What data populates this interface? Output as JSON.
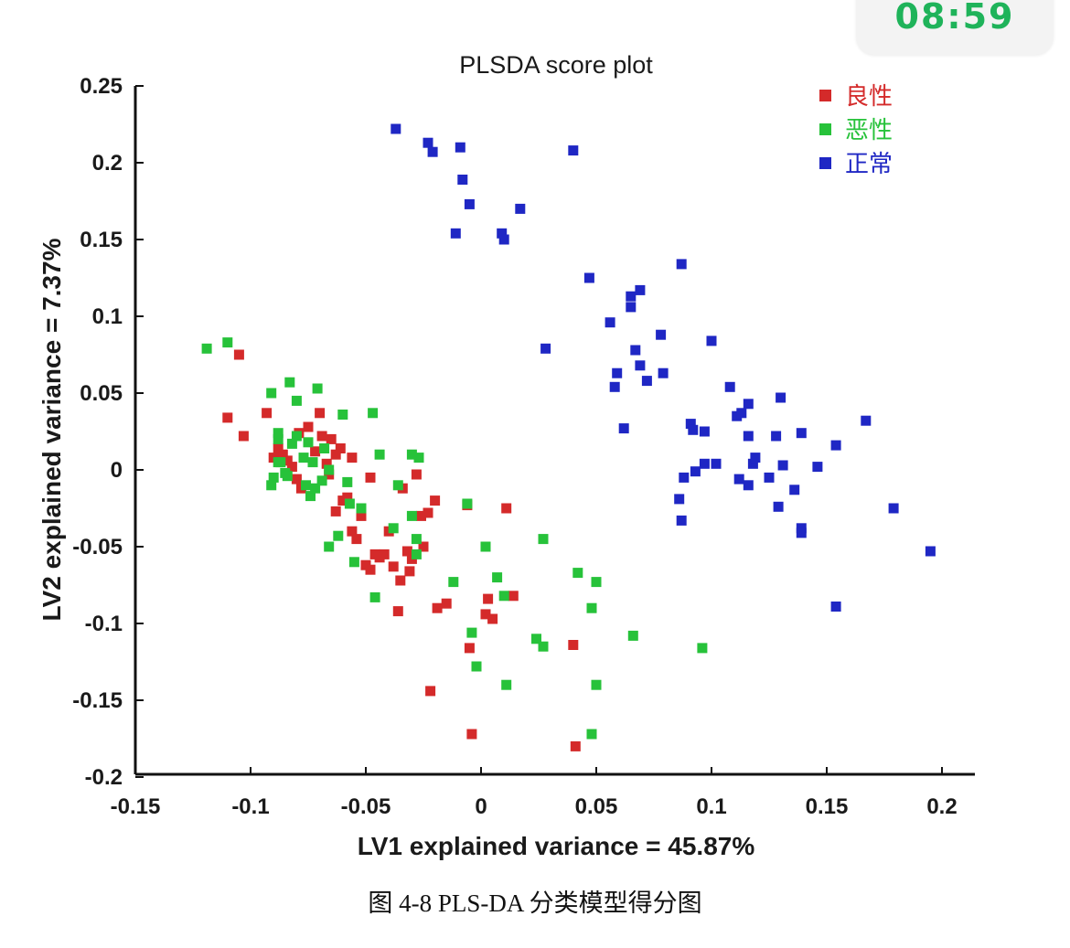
{
  "status_bar": {
    "time": "08:59",
    "time_color": "#1fb35a"
  },
  "caption": "图 4-8 PLS-DA 分类模型得分图",
  "chart_data": {
    "type": "scatter",
    "title": "PLSDA score plot",
    "xlabel": "LV1 explained variance = 45.87%",
    "ylabel": "LV2 explained variance = 7.37%",
    "xlim": [
      -0.15,
      0.22
    ],
    "ylim": [
      -0.2,
      0.25
    ],
    "xticks": [
      -0.15,
      -0.1,
      -0.05,
      0,
      0.05,
      0.1,
      0.15,
      0.2
    ],
    "xtick_labels": [
      "-0.15",
      "-0.1",
      "-0.05",
      "0",
      "0.05",
      "0.1",
      "0.15",
      "0.2"
    ],
    "yticks": [
      0.25,
      0.2,
      0.15,
      0.1,
      0.05,
      0,
      -0.05,
      -0.1,
      -0.15,
      -0.2
    ],
    "ytick_labels": [
      "0.25",
      "0.2",
      "0.15",
      "0.1",
      "0.05",
      "0",
      "-0.05",
      "-0.1",
      "-0.15",
      "-0.2"
    ],
    "legend_position": "top-right",
    "series": [
      {
        "name": "良性",
        "color": "#d42a2a",
        "points": [
          [
            -0.105,
            0.075
          ],
          [
            -0.11,
            0.034
          ],
          [
            -0.103,
            0.022
          ],
          [
            -0.093,
            0.037
          ],
          [
            -0.09,
            0.008
          ],
          [
            -0.088,
            0.014
          ],
          [
            -0.086,
            0.01
          ],
          [
            -0.084,
            0.006
          ],
          [
            -0.082,
            0.002
          ],
          [
            -0.08,
            -0.006
          ],
          [
            -0.078,
            -0.012
          ],
          [
            -0.079,
            0.024
          ],
          [
            -0.075,
            0.028
          ],
          [
            -0.072,
            0.012
          ],
          [
            -0.07,
            0.037
          ],
          [
            -0.069,
            0.022
          ],
          [
            -0.067,
            0.004
          ],
          [
            -0.066,
            -0.003
          ],
          [
            -0.063,
            0.01
          ],
          [
            -0.061,
            0.014
          ],
          [
            -0.06,
            -0.02
          ],
          [
            -0.063,
            -0.027
          ],
          [
            -0.058,
            -0.018
          ],
          [
            -0.056,
            -0.04
          ],
          [
            -0.054,
            -0.045
          ],
          [
            -0.052,
            -0.03
          ],
          [
            -0.05,
            -0.062
          ],
          [
            -0.048,
            -0.065
          ],
          [
            -0.046,
            -0.055
          ],
          [
            -0.044,
            -0.057
          ],
          [
            -0.042,
            -0.055
          ],
          [
            -0.04,
            -0.04
          ],
          [
            -0.038,
            -0.063
          ],
          [
            -0.036,
            -0.092
          ],
          [
            -0.035,
            -0.072
          ],
          [
            -0.034,
            -0.012
          ],
          [
            -0.032,
            -0.053
          ],
          [
            -0.03,
            -0.058
          ],
          [
            -0.031,
            -0.066
          ],
          [
            -0.048,
            -0.005
          ],
          [
            -0.065,
            0.02
          ],
          [
            -0.056,
            0.008
          ],
          [
            -0.028,
            -0.003
          ],
          [
            -0.025,
            -0.05
          ],
          [
            -0.023,
            -0.028
          ],
          [
            -0.02,
            -0.02
          ],
          [
            -0.019,
            -0.09
          ],
          [
            -0.015,
            -0.087
          ],
          [
            -0.006,
            -0.023
          ],
          [
            -0.005,
            -0.116
          ],
          [
            0.003,
            -0.084
          ],
          [
            0.005,
            -0.097
          ],
          [
            0.011,
            -0.025
          ],
          [
            0.014,
            -0.082
          ],
          [
            0.04,
            -0.114
          ],
          [
            -0.022,
            -0.144
          ],
          [
            -0.004,
            -0.172
          ],
          [
            0.041,
            -0.18
          ],
          [
            0.002,
            -0.094
          ],
          [
            -0.026,
            -0.03
          ]
        ]
      },
      {
        "name": "恶性",
        "color": "#27c23a",
        "points": [
          [
            -0.119,
            0.079
          ],
          [
            -0.11,
            0.083
          ],
          [
            -0.091,
            0.05
          ],
          [
            -0.09,
            -0.005
          ],
          [
            -0.091,
            -0.01
          ],
          [
            -0.088,
            0.02
          ],
          [
            -0.087,
            0.005
          ],
          [
            -0.085,
            -0.002
          ],
          [
            -0.083,
            0.057
          ],
          [
            -0.082,
            0.017
          ],
          [
            -0.08,
            0.045
          ],
          [
            -0.077,
            0.008
          ],
          [
            -0.076,
            -0.01
          ],
          [
            -0.074,
            -0.017
          ],
          [
            -0.073,
            0.005
          ],
          [
            -0.072,
            -0.012
          ],
          [
            -0.071,
            0.053
          ],
          [
            -0.069,
            -0.007
          ],
          [
            -0.068,
            0.014
          ],
          [
            -0.066,
            -0.05
          ],
          [
            -0.062,
            -0.043
          ],
          [
            -0.06,
            0.036
          ],
          [
            -0.058,
            -0.008
          ],
          [
            -0.057,
            -0.022
          ],
          [
            -0.055,
            -0.06
          ],
          [
            -0.047,
            0.037
          ],
          [
            -0.046,
            -0.083
          ],
          [
            -0.044,
            0.01
          ],
          [
            -0.038,
            -0.038
          ],
          [
            -0.036,
            -0.01
          ],
          [
            -0.03,
            -0.03
          ],
          [
            -0.027,
            0.008
          ],
          [
            -0.028,
            -0.055
          ],
          [
            -0.03,
            0.01
          ],
          [
            -0.028,
            -0.045
          ],
          [
            -0.012,
            -0.073
          ],
          [
            -0.006,
            -0.022
          ],
          [
            -0.004,
            -0.106
          ],
          [
            -0.002,
            -0.128
          ],
          [
            0.002,
            -0.05
          ],
          [
            0.011,
            -0.14
          ],
          [
            0.007,
            -0.07
          ],
          [
            0.01,
            -0.082
          ],
          [
            0.024,
            -0.11
          ],
          [
            0.027,
            -0.115
          ],
          [
            0.027,
            -0.045
          ],
          [
            0.042,
            -0.067
          ],
          [
            0.048,
            -0.09
          ],
          [
            0.05,
            -0.073
          ],
          [
            0.05,
            -0.14
          ],
          [
            0.048,
            -0.172
          ],
          [
            0.066,
            -0.108
          ],
          [
            0.096,
            -0.116
          ],
          [
            -0.088,
            0.024
          ],
          [
            -0.084,
            -0.004
          ],
          [
            -0.066,
            0.0
          ],
          [
            -0.08,
            0.022
          ],
          [
            -0.088,
            0.005
          ],
          [
            -0.052,
            -0.025
          ],
          [
            -0.075,
            0.018
          ]
        ]
      },
      {
        "name": "正常",
        "color": "#1f27c4",
        "points": [
          [
            -0.037,
            0.222
          ],
          [
            -0.023,
            0.213
          ],
          [
            -0.021,
            0.207
          ],
          [
            -0.009,
            0.21
          ],
          [
            -0.008,
            0.189
          ],
          [
            -0.005,
            0.173
          ],
          [
            -0.011,
            0.154
          ],
          [
            0.009,
            0.154
          ],
          [
            0.01,
            0.15
          ],
          [
            0.017,
            0.17
          ],
          [
            0.04,
            0.208
          ],
          [
            0.047,
            0.125
          ],
          [
            0.087,
            0.134
          ],
          [
            0.056,
            0.096
          ],
          [
            0.065,
            0.106
          ],
          [
            0.065,
            0.113
          ],
          [
            0.069,
            0.117
          ],
          [
            0.028,
            0.079
          ],
          [
            0.078,
            0.088
          ],
          [
            0.067,
            0.078
          ],
          [
            0.069,
            0.068
          ],
          [
            0.072,
            0.058
          ],
          [
            0.079,
            0.063
          ],
          [
            0.059,
            0.063
          ],
          [
            0.058,
            0.054
          ],
          [
            0.062,
            0.027
          ],
          [
            0.1,
            0.084
          ],
          [
            0.108,
            0.054
          ],
          [
            0.111,
            0.035
          ],
          [
            0.113,
            0.037
          ],
          [
            0.116,
            0.043
          ],
          [
            0.13,
            0.047
          ],
          [
            0.091,
            0.03
          ],
          [
            0.092,
            0.026
          ],
          [
            0.097,
            0.025
          ],
          [
            0.116,
            0.022
          ],
          [
            0.128,
            0.022
          ],
          [
            0.139,
            0.024
          ],
          [
            0.154,
            0.016
          ],
          [
            0.167,
            0.032
          ],
          [
            0.097,
            0.004
          ],
          [
            0.102,
            0.004
          ],
          [
            0.112,
            -0.006
          ],
          [
            0.116,
            -0.01
          ],
          [
            0.118,
            0.004
          ],
          [
            0.119,
            0.008
          ],
          [
            0.125,
            -0.005
          ],
          [
            0.136,
            -0.013
          ],
          [
            0.146,
            0.002
          ],
          [
            0.088,
            -0.005
          ],
          [
            0.086,
            -0.019
          ],
          [
            0.087,
            -0.033
          ],
          [
            0.129,
            -0.024
          ],
          [
            0.139,
            -0.038
          ],
          [
            0.139,
            -0.041
          ],
          [
            0.179,
            -0.025
          ],
          [
            0.195,
            -0.053
          ],
          [
            0.154,
            -0.089
          ],
          [
            0.131,
            0.003
          ],
          [
            0.093,
            -0.001
          ]
        ]
      }
    ]
  }
}
